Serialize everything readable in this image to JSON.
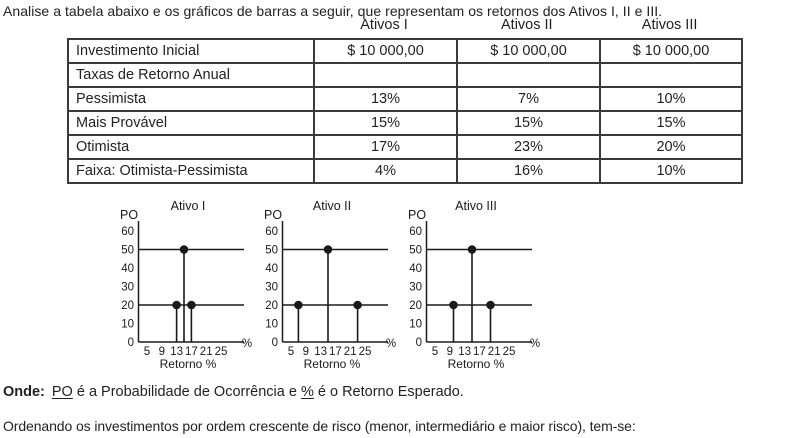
{
  "page": {
    "intro": "Analise a tabela abaixo e os gráficos de barras a seguir, que representam os retornos dos Ativos I, II e III.",
    "closing": "Ordenando os investimentos por ordem crescente de risco (menor, intermediário e maior risco), tem-se:"
  },
  "where_line": {
    "prefix": "Onde:",
    "po_term": "PO",
    "middle": " é a Probabilidade de Ocorrência e ",
    "pct_term": "%",
    "suffix": " é o Retorno Esperado."
  },
  "table": {
    "column_headers": [
      "Ativos I",
      "Ativos II",
      "Ativos III"
    ],
    "rows": [
      {
        "label": "Investimento Inicial",
        "values": [
          "$ 10 000,00",
          "$ 10 000,00",
          "$ 10 000,00"
        ]
      },
      {
        "label": "Taxas de Retorno Anual",
        "values": [
          "",
          "",
          ""
        ]
      },
      {
        "label": "Pessimista",
        "values": [
          "13%",
          "7%",
          "10%"
        ]
      },
      {
        "label": "Mais Provável",
        "values": [
          "15%",
          "15%",
          "15%"
        ]
      },
      {
        "label": "Otimista",
        "values": [
          "17%",
          "23%",
          "20%"
        ]
      },
      {
        "label": "Faixa: Otimista-Pessimista",
        "values": [
          "4%",
          "16%",
          "10%"
        ]
      }
    ]
  },
  "chart_data": [
    {
      "type": "bar",
      "subtype": "stem-lollipop",
      "title": "Ativo I",
      "ylabel": "PO",
      "xlabel": "Retorno %",
      "x_axis_unit": "%",
      "x": [
        13,
        15,
        17
      ],
      "values": [
        20,
        50,
        20
      ],
      "x_ticks": [
        5,
        9,
        13,
        17,
        21,
        25
      ],
      "y_ticks": [
        0,
        10,
        20,
        30,
        40,
        50,
        60
      ],
      "ref_lines": [
        20,
        50
      ],
      "ylim": [
        0,
        60
      ],
      "grid": false,
      "legend": false
    },
    {
      "type": "bar",
      "subtype": "stem-lollipop",
      "title": "Ativo II",
      "ylabel": "PO",
      "xlabel": "Retorno %",
      "x_axis_unit": "%",
      "x": [
        7,
        15,
        23
      ],
      "values": [
        20,
        50,
        20
      ],
      "x_ticks": [
        5,
        9,
        13,
        17,
        21,
        25
      ],
      "y_ticks": [
        0,
        10,
        20,
        30,
        40,
        50,
        60
      ],
      "ref_lines": [
        20,
        50
      ],
      "ylim": [
        0,
        60
      ],
      "grid": false,
      "legend": false
    },
    {
      "type": "bar",
      "subtype": "stem-lollipop",
      "title": "Ativo III",
      "ylabel": "PO",
      "xlabel": "Retorno %",
      "x_axis_unit": "%",
      "x": [
        10,
        15,
        20
      ],
      "values": [
        20,
        50,
        20
      ],
      "x_ticks": [
        5,
        9,
        13,
        17,
        21,
        25
      ],
      "y_ticks": [
        0,
        10,
        20,
        30,
        40,
        50,
        60
      ],
      "ref_lines": [
        20,
        50
      ],
      "ylim": [
        0,
        60
      ],
      "grid": false,
      "legend": false
    }
  ],
  "colors": {
    "text": "#222222",
    "table_border": "#3a3a3a",
    "chart_ink": "#1a1a1a",
    "background": "#ffffff"
  }
}
